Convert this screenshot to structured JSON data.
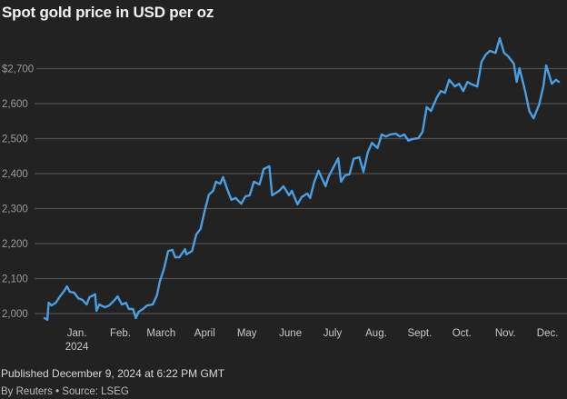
{
  "chart_data": {
    "type": "line",
    "title": "Spot gold price in USD per oz",
    "xlabel": "",
    "ylabel": "",
    "ylim": [
      1970,
      2800
    ],
    "xlim": [
      "2023-12-09",
      "2024-12-09"
    ],
    "grid": true,
    "y_ticks": [
      {
        "value": 2000,
        "label": "2,000"
      },
      {
        "value": 2100,
        "label": "2,100"
      },
      {
        "value": 2200,
        "label": "2,200"
      },
      {
        "value": 2300,
        "label": "2,300"
      },
      {
        "value": 2400,
        "label": "2,400"
      },
      {
        "value": 2500,
        "label": "2,500"
      },
      {
        "value": 2600,
        "label": "2,600"
      },
      {
        "value": 2700,
        "label": "$2,700"
      }
    ],
    "x_ticks": [
      {
        "date": "2024-01-01",
        "label": "Jan.",
        "sublabel": "2024"
      },
      {
        "date": "2024-02-01",
        "label": "Feb."
      },
      {
        "date": "2024-03-01",
        "label": "March"
      },
      {
        "date": "2024-04-01",
        "label": "April"
      },
      {
        "date": "2024-05-01",
        "label": "May"
      },
      {
        "date": "2024-06-01",
        "label": "June"
      },
      {
        "date": "2024-07-01",
        "label": "July"
      },
      {
        "date": "2024-08-01",
        "label": "Aug."
      },
      {
        "date": "2024-09-01",
        "label": "Sept."
      },
      {
        "date": "2024-10-01",
        "label": "Oct."
      },
      {
        "date": "2024-11-01",
        "label": "Nov."
      },
      {
        "date": "2024-12-01",
        "label": "Dec."
      }
    ],
    "series": [
      {
        "color": "#4a9fe3",
        "x": [
          "2023-12-09",
          "2023-12-11",
          "2023-12-12",
          "2023-12-14",
          "2023-12-17",
          "2023-12-20",
          "2023-12-23",
          "2023-12-25",
          "2023-12-27",
          "2023-12-30",
          "2024-01-02",
          "2024-01-05",
          "2024-01-08",
          "2024-01-10",
          "2024-01-14",
          "2024-01-15",
          "2024-01-17",
          "2024-01-21",
          "2024-01-24",
          "2024-01-28",
          "2024-01-30",
          "2024-02-02",
          "2024-02-05",
          "2024-02-07",
          "2024-02-10",
          "2024-02-12",
          "2024-02-14",
          "2024-02-17",
          "2024-02-20",
          "2024-02-24",
          "2024-02-27",
          "2024-02-29",
          "2024-03-03",
          "2024-03-06",
          "2024-03-09",
          "2024-03-11",
          "2024-03-14",
          "2024-03-18",
          "2024-03-19",
          "2024-03-23",
          "2024-03-26",
          "2024-03-29",
          "2024-04-01",
          "2024-04-04",
          "2024-04-07",
          "2024-04-09",
          "2024-04-12",
          "2024-04-14",
          "2024-04-17",
          "2024-04-20",
          "2024-04-23",
          "2024-04-27",
          "2024-04-30",
          "2024-05-03",
          "2024-05-06",
          "2024-05-10",
          "2024-05-13",
          "2024-05-17",
          "2024-05-19",
          "2024-05-24",
          "2024-05-27",
          "2024-05-31",
          "2024-06-02",
          "2024-06-06",
          "2024-06-09",
          "2024-06-13",
          "2024-06-15",
          "2024-06-18",
          "2024-06-21",
          "2024-06-23",
          "2024-06-26",
          "2024-06-28",
          "2024-07-02",
          "2024-07-05",
          "2024-07-07",
          "2024-07-10",
          "2024-07-13",
          "2024-07-16",
          "2024-07-20",
          "2024-07-23",
          "2024-07-26",
          "2024-07-29",
          "2024-08-02",
          "2024-08-05",
          "2024-08-08",
          "2024-08-11",
          "2024-08-15",
          "2024-08-18",
          "2024-08-21",
          "2024-08-24",
          "2024-08-27",
          "2024-08-31",
          "2024-09-03",
          "2024-09-06",
          "2024-09-09",
          "2024-09-13",
          "2024-09-16",
          "2024-09-19",
          "2024-09-22",
          "2024-09-26",
          "2024-09-29",
          "2024-10-02",
          "2024-10-05",
          "2024-10-08",
          "2024-10-12",
          "2024-10-15",
          "2024-10-18",
          "2024-10-21",
          "2024-10-25",
          "2024-10-28",
          "2024-10-31",
          "2024-11-03",
          "2024-11-07",
          "2024-11-09",
          "2024-11-11",
          "2024-11-15",
          "2024-11-18",
          "2024-11-21",
          "2024-11-25",
          "2024-11-28",
          "2024-11-30",
          "2024-12-04",
          "2024-12-07",
          "2024-12-09"
        ],
        "values": [
          1987,
          1982,
          2031,
          2023,
          2031,
          2049,
          2065,
          2078,
          2062,
          2060,
          2044,
          2039,
          2026,
          2047,
          2055,
          2008,
          2026,
          2018,
          2023,
          2039,
          2049,
          2026,
          2031,
          2013,
          2013,
          1987,
          2005,
          2013,
          2023,
          2026,
          2052,
          2091,
          2127,
          2179,
          2182,
          2161,
          2161,
          2184,
          2169,
          2179,
          2226,
          2242,
          2294,
          2340,
          2351,
          2377,
          2371,
          2390,
          2356,
          2325,
          2330,
          2314,
          2335,
          2338,
          2377,
          2369,
          2413,
          2421,
          2338,
          2351,
          2364,
          2338,
          2351,
          2312,
          2333,
          2343,
          2330,
          2377,
          2408,
          2390,
          2364,
          2390,
          2421,
          2444,
          2377,
          2395,
          2398,
          2442,
          2447,
          2405,
          2460,
          2488,
          2473,
          2512,
          2506,
          2512,
          2514,
          2506,
          2512,
          2494,
          2499,
          2501,
          2519,
          2590,
          2579,
          2616,
          2636,
          2631,
          2668,
          2649,
          2657,
          2636,
          2662,
          2655,
          2649,
          2719,
          2740,
          2751,
          2745,
          2787,
          2745,
          2735,
          2714,
          2662,
          2701,
          2636,
          2579,
          2558,
          2597,
          2649,
          2709,
          2657,
          2668,
          2662
        ]
      }
    ]
  },
  "colors": {
    "background": "#222222",
    "grid": "#4f4f4f",
    "line": "#4a9fe3",
    "tick_text": "#9a9a9a",
    "month_text": "#c8c8c8"
  },
  "footer": {
    "published": "Published December 9, 2024 at 6:22 PM GMT",
    "source": "By Reuters • Source: LSEG"
  }
}
